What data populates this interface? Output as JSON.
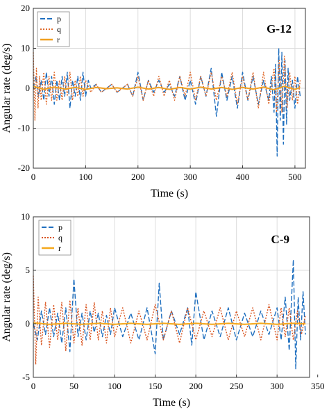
{
  "chart_data": [
    {
      "type": "line",
      "tag": "G-12",
      "xlabel": "Time (s)",
      "ylabel": "Angular rate (deg/s)",
      "xlim": [
        0,
        520
      ],
      "ylim": [
        -20,
        20
      ],
      "xticks": [
        "0",
        "100",
        "200",
        "300",
        "400",
        "500"
      ],
      "xtick_values": [
        0,
        100,
        200,
        300,
        400,
        500
      ],
      "yticks": [
        "20",
        "10",
        "0",
        "-10",
        "-20"
      ],
      "ytick_values": [
        20,
        10,
        0,
        -10,
        -20
      ],
      "grid": true,
      "legend_position": "top-left",
      "series": [
        {
          "name": "p",
          "color": "#1f6fbf",
          "style": "dash",
          "x": [
            0,
            5,
            10,
            15,
            20,
            25,
            30,
            35,
            40,
            45,
            50,
            55,
            60,
            65,
            70,
            75,
            80,
            85,
            90,
            95,
            100,
            105,
            110,
            120,
            130,
            140,
            150,
            160,
            170,
            180,
            190,
            200,
            210,
            220,
            230,
            240,
            250,
            260,
            270,
            280,
            290,
            300,
            310,
            320,
            330,
            340,
            350,
            360,
            370,
            380,
            390,
            400,
            410,
            420,
            430,
            440,
            450,
            455,
            460,
            463,
            466,
            469,
            472,
            475,
            478,
            481,
            484,
            487,
            490,
            495,
            500,
            505,
            510
          ],
          "y": [
            0,
            3,
            -2,
            2,
            -3,
            4,
            -2,
            3,
            -4,
            2,
            -3,
            3,
            -2,
            4,
            -5,
            2,
            -2,
            3,
            -3,
            4,
            -2,
            2,
            0,
            1,
            -1,
            0,
            1,
            -1,
            0,
            1,
            -2,
            4,
            -3,
            2,
            -1,
            2,
            -1,
            1,
            -2,
            3,
            -3,
            2,
            -4,
            3,
            -2,
            5,
            -7,
            4,
            -3,
            3,
            -5,
            4,
            -3,
            3,
            -4,
            2,
            -3,
            3,
            -6,
            6,
            -17,
            10,
            -8,
            9,
            -14,
            7,
            -9,
            5,
            -3,
            2,
            -5,
            3,
            -2
          ]
        },
        {
          "name": "q",
          "color": "#e06a2c",
          "style": "dot",
          "x": [
            0,
            3,
            6,
            9,
            12,
            15,
            20,
            25,
            30,
            35,
            40,
            45,
            50,
            55,
            60,
            65,
            70,
            75,
            80,
            85,
            90,
            95,
            100,
            110,
            120,
            130,
            140,
            150,
            160,
            170,
            180,
            190,
            200,
            210,
            220,
            230,
            240,
            250,
            260,
            270,
            280,
            290,
            300,
            310,
            320,
            330,
            340,
            350,
            360,
            370,
            380,
            390,
            400,
            410,
            420,
            430,
            440,
            450,
            460,
            465,
            470,
            475,
            480,
            485,
            490,
            495,
            500,
            505,
            510
          ],
          "y": [
            9,
            -8,
            5,
            -5,
            3,
            -3,
            4,
            -4,
            3,
            -3,
            4,
            -3,
            2,
            -3,
            3,
            -2,
            4,
            -3,
            2,
            -2,
            3,
            -2,
            2,
            -1,
            1,
            -1,
            0,
            1,
            -1,
            0,
            1,
            -2,
            3,
            -3,
            2,
            -2,
            3,
            -2,
            2,
            -3,
            3,
            -2,
            4,
            -3,
            3,
            -2,
            4,
            -3,
            3,
            -2,
            4,
            -4,
            3,
            -3,
            4,
            -5,
            4,
            -4,
            5,
            -6,
            7,
            -6,
            8,
            -5,
            4,
            -3,
            3,
            -4,
            2
          ]
        },
        {
          "name": "r",
          "color": "#f0a020",
          "style": "solid",
          "x": [
            0,
            20,
            40,
            60,
            80,
            100,
            120,
            140,
            160,
            180,
            200,
            220,
            240,
            260,
            280,
            300,
            320,
            340,
            360,
            380,
            400,
            420,
            440,
            460,
            480,
            500,
            510
          ],
          "y": [
            0.5,
            -0.3,
            0.3,
            -0.2,
            0.2,
            -0.3,
            0.2,
            -0.1,
            0.1,
            -0.2,
            0.3,
            -0.2,
            0.2,
            -0.3,
            0.2,
            -0.2,
            0.3,
            -0.2,
            0.2,
            -0.3,
            0.2,
            -0.2,
            0.3,
            -0.4,
            0.5,
            -0.3,
            0.2
          ]
        }
      ]
    },
    {
      "type": "line",
      "tag": "C-9",
      "xlabel": "Time (s)",
      "ylabel": "Angular rate (deg/s)",
      "xlim": [
        0,
        340
      ],
      "ylim": [
        -5,
        10
      ],
      "xticks": [
        "0",
        "50",
        "100",
        "150",
        "200",
        "250",
        "300",
        "350"
      ],
      "xtick_values": [
        0,
        50,
        100,
        150,
        200,
        250,
        300,
        350
      ],
      "yticks": [
        "10",
        "5",
        "0",
        "-5"
      ],
      "ytick_values": [
        10,
        5,
        0,
        -5
      ],
      "grid": true,
      "legend_position": "top-left",
      "series": [
        {
          "name": "p",
          "color": "#1f6fbf",
          "style": "dash",
          "x": [
            0,
            5,
            10,
            15,
            20,
            25,
            30,
            35,
            40,
            45,
            50,
            55,
            60,
            65,
            70,
            75,
            80,
            85,
            90,
            95,
            100,
            110,
            120,
            130,
            140,
            150,
            155,
            160,
            170,
            180,
            190,
            195,
            200,
            210,
            220,
            230,
            240,
            250,
            260,
            270,
            280,
            290,
            300,
            305,
            310,
            315,
            320,
            323,
            326,
            329,
            332,
            335
          ],
          "y": [
            0,
            -1.5,
            1.2,
            -1,
            1.5,
            -1.2,
            1,
            -1.8,
            1.5,
            -2.6,
            4.2,
            -1.2,
            1,
            -1.5,
            1.2,
            -0.8,
            1,
            -1.2,
            0.8,
            -1,
            1.5,
            -1.2,
            1,
            -1.5,
            1.5,
            -2.8,
            3.8,
            -1.5,
            1.2,
            -1,
            1.5,
            -2,
            3,
            -1.5,
            1.2,
            -1.2,
            1.5,
            -1.5,
            1,
            -1.2,
            1.2,
            -1,
            1.5,
            -1.5,
            2.5,
            -2.5,
            6,
            -4.2,
            2.5,
            -1.5,
            3,
            -1
          ]
        },
        {
          "name": "q",
          "color": "#d9531e",
          "style": "dot",
          "x": [
            0,
            3,
            6,
            10,
            15,
            20,
            25,
            30,
            35,
            40,
            45,
            50,
            55,
            60,
            65,
            70,
            75,
            80,
            85,
            90,
            95,
            100,
            110,
            120,
            130,
            140,
            150,
            160,
            170,
            180,
            190,
            200,
            210,
            220,
            230,
            240,
            250,
            260,
            270,
            280,
            290,
            300,
            305,
            310,
            315,
            320,
            325,
            330,
            335
          ],
          "y": [
            4.5,
            -3.8,
            2.5,
            -2,
            2,
            -2.2,
            1.8,
            -1.5,
            2,
            -2.5,
            2.2,
            -1.8,
            1.5,
            -2,
            1.8,
            -1.5,
            2,
            -1.5,
            1.2,
            -1.8,
            1.5,
            -1.2,
            1.5,
            -1.8,
            1.2,
            -1.5,
            1.8,
            -1.5,
            1.2,
            -1.8,
            1.5,
            -1.5,
            1.2,
            -1.2,
            1.5,
            -1.5,
            1.2,
            -1.2,
            1.5,
            -1.5,
            1.8,
            -1.5,
            1.5,
            -1.2,
            1.5,
            -1.5,
            1.2,
            -1,
            0.8
          ]
        },
        {
          "name": "r",
          "color": "#f5a81c",
          "style": "solid",
          "x": [
            0,
            20,
            40,
            60,
            80,
            100,
            120,
            140,
            160,
            180,
            200,
            220,
            240,
            260,
            280,
            300,
            320,
            335
          ],
          "y": [
            0.1,
            -0.05,
            0.05,
            -0.05,
            0.05,
            -0.05,
            0.05,
            -0.05,
            0.05,
            -0.05,
            0.05,
            -0.05,
            0.05,
            -0.05,
            0.05,
            -0.05,
            0.05,
            0
          ]
        }
      ]
    }
  ]
}
